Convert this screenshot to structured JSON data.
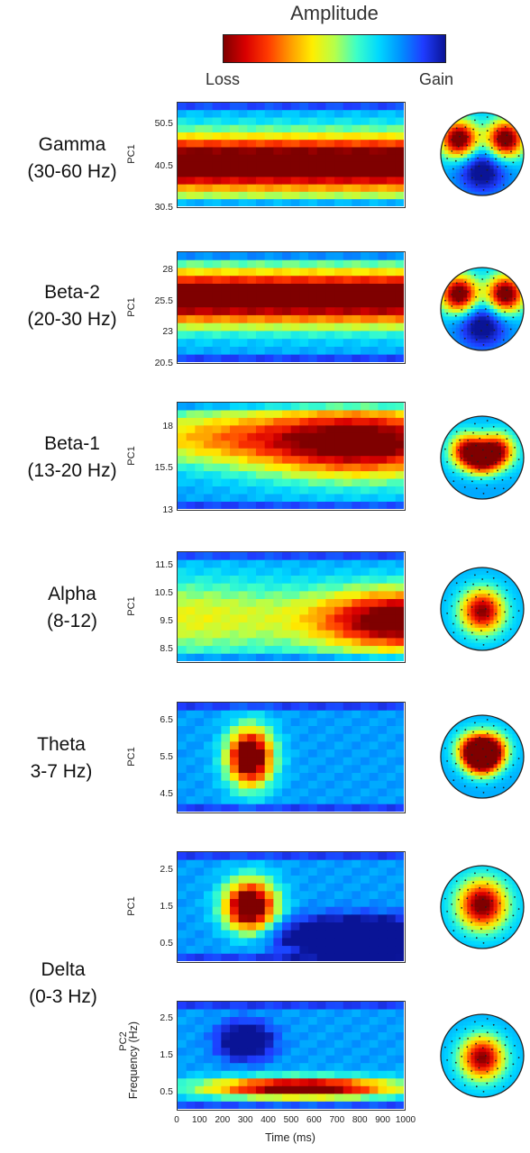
{
  "colorbar": {
    "title": "Amplitude",
    "low_label": "Loss",
    "high_label": "Gain",
    "stops": [
      "#7f0000",
      "#d90000",
      "#ff3a00",
      "#ff9a00",
      "#ffee00",
      "#b6ff4a",
      "#3cffc8",
      "#00d8ff",
      "#0090ff",
      "#1f3cff",
      "#0a1496"
    ]
  },
  "bands": [
    {
      "name": "Gamma",
      "range": "(30-60 Hz)"
    },
    {
      "name": "Beta-2",
      "range": "(20-30 Hz)"
    },
    {
      "name": "Beta-1",
      "range": "(13-20 Hz)"
    },
    {
      "name": "Alpha",
      "range": "(8-12)"
    },
    {
      "name": "Theta",
      "range": "3-7 Hz)"
    },
    {
      "name": "Delta",
      "range": "(0-3 Hz)"
    }
  ],
  "chart_data": [
    {
      "type": "heatmap",
      "panel": "gamma",
      "ylabel": "PC1",
      "yticks": [
        "50.5",
        "40.5",
        "30.5"
      ],
      "ylim": [
        30.5,
        56
      ],
      "rows": 14,
      "cols": 26,
      "features": [
        {
          "yc": 41,
          "ys": 5,
          "xs": 0,
          "xc": 0.5,
          "amp": -0.95
        }
      ]
    },
    {
      "type": "heatmap",
      "panel": "beta2",
      "ylabel": "PC1",
      "yticks": [
        "28",
        "25.5",
        "23",
        "20.5"
      ],
      "ylim": [
        20.5,
        29.5
      ],
      "rows": 14,
      "cols": 26,
      "features": [
        {
          "yc": 25.8,
          "ys": 1.6,
          "xs": 0,
          "xc": 0.5,
          "amp": -0.92
        }
      ]
    },
    {
      "type": "heatmap",
      "panel": "beta1",
      "ylabel": "PC1",
      "yticks": [
        "18",
        "15.5",
        "13"
      ],
      "ylim": [
        13,
        19.5
      ],
      "rows": 14,
      "cols": 26,
      "features": [
        {
          "yc": 17.1,
          "ys": 1.5,
          "xs": 0.35,
          "xc": 0.8,
          "amp": -0.9
        },
        {
          "yc": 17.4,
          "ys": 1.2,
          "xs": 0.3,
          "xc": 0.1,
          "amp": -0.35
        }
      ]
    },
    {
      "type": "heatmap",
      "panel": "alpha",
      "ylabel": "PC1",
      "yticks": [
        "11.5",
        "10.5",
        "9.5",
        "8.5"
      ],
      "ylim": [
        8,
        12
      ],
      "rows": 14,
      "cols": 26,
      "features": [
        {
          "yc": 9.5,
          "ys": 0.8,
          "xs": 0.28,
          "xc": 1.0,
          "amp": -0.9
        },
        {
          "yc": 9.6,
          "ys": 1.0,
          "xs": 0.4,
          "xc": 0.05,
          "amp": -0.35
        }
      ]
    },
    {
      "type": "heatmap",
      "panel": "theta",
      "ylabel": "PC1",
      "yticks": [
        "6.5",
        "5.5",
        "4.5"
      ],
      "ylim": [
        4,
        7
      ],
      "rows": 14,
      "cols": 26,
      "features": [
        {
          "yc": 5.5,
          "ys": 0.55,
          "xs": 0.07,
          "xc": 0.32,
          "amp": -1.0
        }
      ]
    },
    {
      "type": "heatmap",
      "panel": "delta_pc1",
      "ylabel": "PC1",
      "yticks": [
        "2.5",
        "1.5",
        "0.5"
      ],
      "ylim": [
        0,
        3
      ],
      "rows": 14,
      "cols": 26,
      "features": [
        {
          "yc": 1.5,
          "ys": 0.5,
          "xs": 0.08,
          "xc": 0.32,
          "amp": -1.0
        },
        {
          "yc": 0.7,
          "ys": 0.35,
          "xs": 0.25,
          "xc": 0.8,
          "amp": 0.55
        }
      ]
    },
    {
      "type": "heatmap",
      "panel": "delta_pc2",
      "ylabel": "PC2",
      "ylabel2": "Frequency (Hz)",
      "yticks": [
        "2.5",
        "1.5",
        "0.5"
      ],
      "ylim": [
        0,
        3
      ],
      "rows": 14,
      "cols": 26,
      "xlabel": "Time (ms)",
      "xticks": [
        "0",
        "100",
        "200",
        "300",
        "400",
        "500",
        "600",
        "700",
        "800",
        "900",
        "1000"
      ],
      "xlim": [
        0,
        1000
      ],
      "features": [
        {
          "yc": 0.6,
          "ys": 0.2,
          "xs": 0.3,
          "xc": 0.55,
          "amp": -0.9
        },
        {
          "yc": 1.9,
          "ys": 0.35,
          "xs": 0.08,
          "xc": 0.3,
          "amp": 0.45
        }
      ]
    }
  ],
  "topomaps": [
    {
      "panel": "gamma",
      "pattern": "bilateral-frontal"
    },
    {
      "panel": "beta2",
      "pattern": "bilateral-frontal"
    },
    {
      "panel": "beta1",
      "pattern": "frontal-arch"
    },
    {
      "panel": "alpha",
      "pattern": "central"
    },
    {
      "panel": "theta",
      "pattern": "fronto-central-heart"
    },
    {
      "panel": "delta_pc1",
      "pattern": "fronto-central"
    },
    {
      "panel": "delta_pc2",
      "pattern": "central"
    }
  ]
}
